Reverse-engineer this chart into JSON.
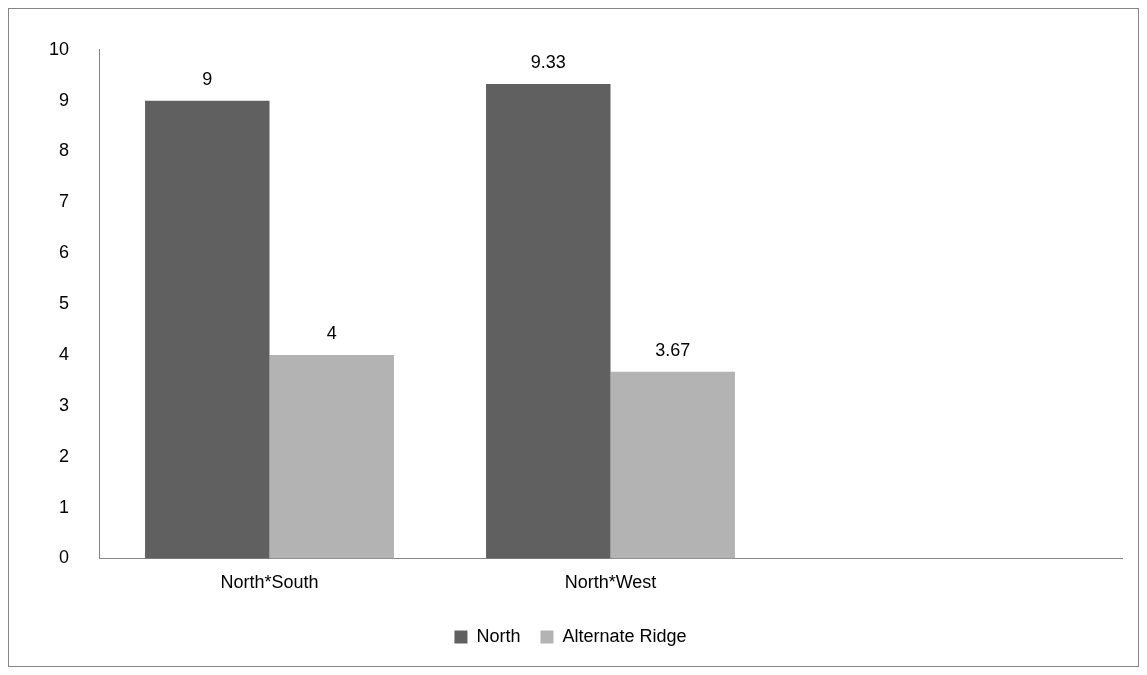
{
  "chart_data": {
    "type": "bar",
    "categories": [
      "North*South",
      "North*West",
      null
    ],
    "series": [
      {
        "name": "North",
        "color": "#606060",
        "values": [
          9,
          9.33,
          null
        ]
      },
      {
        "name": "Alternate Ridge",
        "color": "#b3b3b3",
        "values": [
          4,
          3.67,
          null
        ]
      }
    ],
    "ylim": [
      0,
      10
    ],
    "yticks": [
      0,
      1,
      2,
      3,
      4,
      5,
      6,
      7,
      8,
      9,
      10
    ],
    "grid": false,
    "legend": "bottom",
    "data_labels": true
  }
}
